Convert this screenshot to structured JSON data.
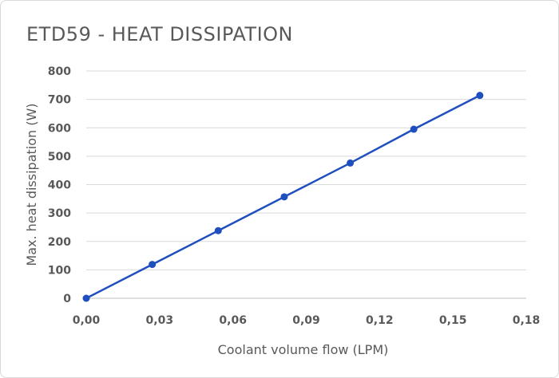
{
  "chart_data": {
    "type": "line",
    "title": "ETD59 - HEAT DISSIPATION",
    "xlabel": "Coolant volume flow (LPM)",
    "ylabel": "Max. heat dissipation (W)",
    "xlim": [
      0,
      0.18
    ],
    "ylim": [
      0,
      800
    ],
    "x_ticks": [
      "0,00",
      "0,03",
      "0,06",
      "0,09",
      "0,12",
      "0,15",
      "0,18"
    ],
    "x_tick_values": [
      0,
      0.03,
      0.06,
      0.09,
      0.12,
      0.15,
      0.18
    ],
    "y_ticks": [
      "0",
      "100",
      "200",
      "300",
      "400",
      "500",
      "600",
      "700",
      "800"
    ],
    "y_tick_values": [
      0,
      100,
      200,
      300,
      400,
      500,
      600,
      700,
      800
    ],
    "grid": "horizontal",
    "legend": "none",
    "series": [
      {
        "color": "#1f4fbf",
        "x": [
          0.0,
          0.027,
          0.054,
          0.081,
          0.108,
          0.134,
          0.161
        ],
        "y": [
          0,
          119,
          238,
          357,
          476,
          595,
          714
        ]
      }
    ]
  }
}
